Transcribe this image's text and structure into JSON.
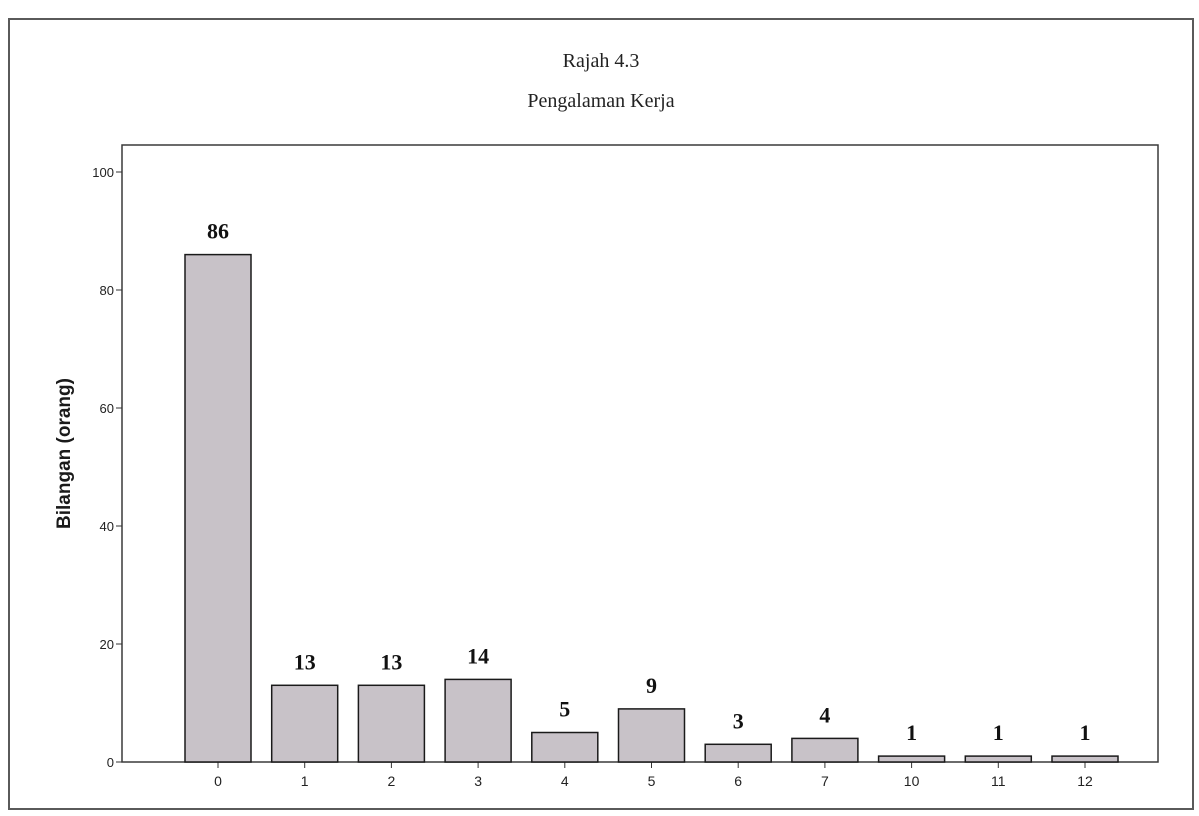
{
  "chart_data": {
    "type": "bar",
    "title": "Rajah 4.3",
    "subtitle": "Pengalaman Kerja",
    "xlabel": "",
    "ylabel": "Bilangan (orang)",
    "categories": [
      "0",
      "1",
      "2",
      "3",
      "4",
      "5",
      "6",
      "7",
      "10",
      "11",
      "12"
    ],
    "values": [
      86,
      13,
      13,
      14,
      5,
      9,
      3,
      4,
      1,
      1,
      1
    ],
    "data_labels": [
      "86",
      "13",
      "13",
      "14",
      "5",
      "9",
      "3",
      "4",
      "1",
      "1",
      "1"
    ],
    "yticks": [
      "0",
      "20",
      "40",
      "60",
      "80",
      "100"
    ],
    "ylim": [
      0,
      100
    ],
    "grid": false,
    "legend": "none",
    "bar_color": "#c8c2c8",
    "bar_edge_color": "#1a1a1a"
  }
}
